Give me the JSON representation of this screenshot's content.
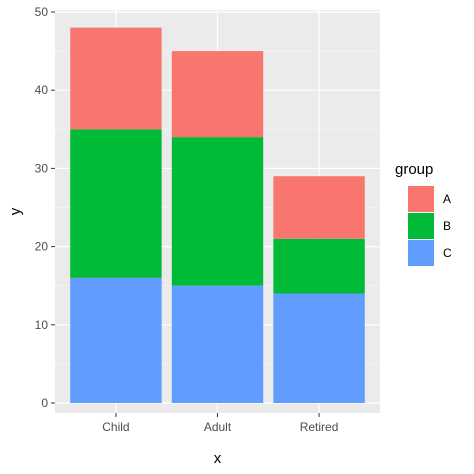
{
  "chart_data": {
    "type": "bar",
    "stacked": true,
    "categories": [
      "Child",
      "Adult",
      "Retired"
    ],
    "series": [
      {
        "name": "C",
        "values": [
          16,
          15,
          14
        ],
        "color": "#619CFF"
      },
      {
        "name": "B",
        "values": [
          19,
          19,
          7
        ],
        "color": "#00BA38"
      },
      {
        "name": "A",
        "values": [
          13,
          11,
          8
        ],
        "color": "#F8766D"
      }
    ],
    "xlabel": "x",
    "ylabel": "y",
    "ylim": [
      0,
      50
    ],
    "yticks": [
      0,
      10,
      20,
      30,
      40,
      50
    ],
    "grid": true,
    "legend": {
      "title": "group",
      "placement": "right",
      "entries": [
        {
          "name": "A",
          "color": "#F8766D"
        },
        {
          "name": "B",
          "color": "#00BA38"
        },
        {
          "name": "C",
          "color": "#619CFF"
        }
      ]
    }
  }
}
